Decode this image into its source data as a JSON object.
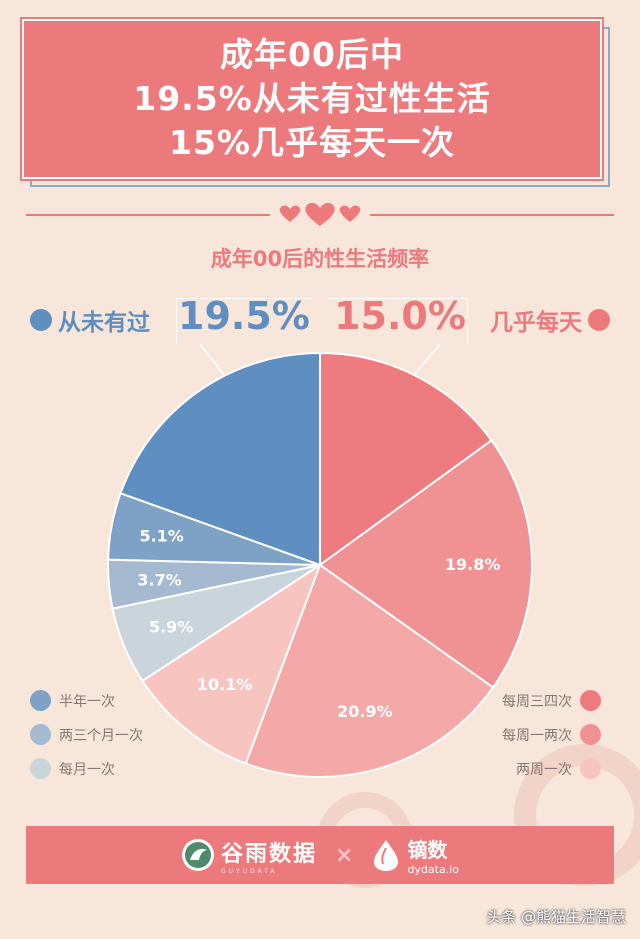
{
  "banner": {
    "line1": "成年00后中",
    "line2": "19.5%从未有过性生活",
    "line3": "15%几乎每天一次"
  },
  "subtitle": "成年00后的性生活频率",
  "callouts": {
    "left_label": "从未有过",
    "left_value": "19.5%",
    "right_label": "几乎每天",
    "right_value": "15.0%"
  },
  "colors": {
    "accent": "#ec7a7d",
    "blue": "#5f8fc0",
    "background": "#f8e6da"
  },
  "chart_data": {
    "type": "pie",
    "start_angle_deg": 0,
    "direction": "clockwise",
    "slices": [
      {
        "label": "几乎每天",
        "value": 15.0,
        "display": "",
        "color": "#ee7b80"
      },
      {
        "label": "每周三四次",
        "value": 19.8,
        "display": "19.8%",
        "color": "#f09293"
      },
      {
        "label": "每周一两次",
        "value": 20.9,
        "display": "20.9%",
        "color": "#f4a8a8"
      },
      {
        "label": "两周一次",
        "value": 10.1,
        "display": "10.1%",
        "color": "#f8c4c0"
      },
      {
        "label": "每月一次",
        "value": 5.9,
        "display": "5.9%",
        "color": "#c9d4db"
      },
      {
        "label": "两三个月一次",
        "value": 3.7,
        "display": "3.7%",
        "color": "#a5b9d0"
      },
      {
        "label": "半年一次",
        "value": 5.1,
        "display": "5.1%",
        "color": "#7ea1c6"
      },
      {
        "label": "从未有过",
        "value": 19.5,
        "display": "",
        "color": "#5f8fc0"
      }
    ]
  },
  "legend_left": [
    {
      "label": "半年一次",
      "color": "#7ea1c6"
    },
    {
      "label": "两三个月一次",
      "color": "#a5b9d0"
    },
    {
      "label": "每月一次",
      "color": "#c9d4db"
    }
  ],
  "legend_right": [
    {
      "label": "每周三四次",
      "color": "#ee7b80"
    },
    {
      "label": "每周一两次",
      "color": "#f09293"
    },
    {
      "label": "两周一次",
      "color": "#f8c4c0"
    }
  ],
  "footer": {
    "logo1_name": "谷雨数据",
    "logo1_sub": "GUYUDATA",
    "times": "×",
    "logo2_name": "镝数",
    "logo2_sub": "dydata.io"
  },
  "watermark": "头条 @熊猫生活智慧"
}
